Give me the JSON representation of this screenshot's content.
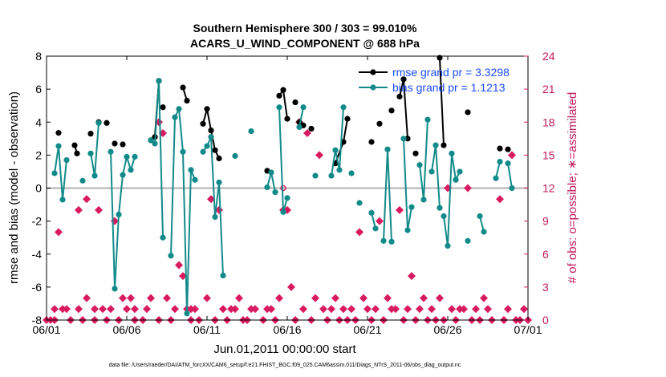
{
  "chart_data": {
    "type": "line",
    "title": "Southern Hemisphere 300 / 303 = 99.010%",
    "subtitle": "ACARS_U_WIND_COMPONENT @ 688 hPa",
    "xlabel": "Jun.01,2011 00:00:00 start",
    "ylabel": "rmse and bias (model - observation)",
    "y2label": "# of obs: o=possible; ∗=assimilated",
    "footnote": "data file: /Users/raeder/DAI/ATM_forcXX/CAM6_setup/f.e21.FHIST_BGC.f09_025.CAM6assim.011/Diags_NTrS_2011-06/obs_diag_output.nc",
    "xlim": [
      0,
      30
    ],
    "ylim": [
      -8,
      8
    ],
    "y2lim": [
      0,
      24
    ],
    "x_ticks": [
      {
        "value": 0,
        "label": "06/01"
      },
      {
        "value": 5,
        "label": "06/06"
      },
      {
        "value": 10,
        "label": "06/11"
      },
      {
        "value": 15,
        "label": "06/16"
      },
      {
        "value": 20,
        "label": "06/21"
      },
      {
        "value": 25,
        "label": "06/26"
      },
      {
        "value": 30,
        "label": "07/01"
      }
    ],
    "y_ticks": [
      -8,
      -6,
      -4,
      -2,
      0,
      2,
      4,
      6,
      8
    ],
    "y2_ticks": [
      0,
      3,
      6,
      9,
      12,
      15,
      18,
      21,
      24
    ],
    "legend_position": "top-right",
    "colors": {
      "rmse": "#000000",
      "bias": "#138a8a",
      "nobs": "#d81b60",
      "zero": "#b0b0b0"
    },
    "series": [
      {
        "name": "rmse grand pr = 3.3298",
        "segments": [
          [
            [
              0.75,
              3.35
            ]
          ],
          [
            [
              1.75,
              2.6
            ],
            [
              1.9,
              2.1
            ]
          ],
          [
            [
              2.75,
              3.3
            ]
          ],
          [
            [
              3.25,
              4.0
            ]
          ],
          [
            [
              3.75,
              3.95
            ]
          ],
          [
            [
              4.25,
              2.7
            ]
          ],
          [
            [
              4.75,
              2.65
            ]
          ],
          [
            [
              6.5,
              2.9
            ],
            [
              6.75,
              3.1
            ],
            [
              7.0,
              6.5
            ]
          ],
          [
            [
              7.25,
              4.9
            ]
          ],
          [
            [
              8.5,
              6.1
            ],
            [
              8.75,
              5.3
            ]
          ],
          [
            [
              9.75,
              3.9
            ],
            [
              10.0,
              4.8
            ],
            [
              10.25,
              3.5
            ],
            [
              10.5,
              2.3
            ],
            [
              10.75,
              1.8
            ]
          ],
          [
            [
              13.75,
              1.05
            ]
          ],
          [
            [
              14.5,
              5.6
            ],
            [
              14.75,
              5.95
            ],
            [
              15.0,
              4.2
            ]
          ],
          [
            [
              15.5,
              5.2
            ]
          ],
          [
            [
              15.75,
              4.0
            ],
            [
              16.0,
              3.8
            ]
          ],
          [
            [
              16.5,
              3.6
            ]
          ],
          [
            [
              18.0,
              1.5
            ],
            [
              18.5,
              2.8
            ],
            [
              18.75,
              4.2
            ]
          ],
          [
            [
              20.25,
              2.8
            ]
          ],
          [
            [
              20.75,
              3.9
            ]
          ],
          [
            [
              21.5,
              4.7
            ]
          ],
          [
            [
              22.0,
              5.55
            ],
            [
              22.25,
              6.6
            ],
            [
              22.5,
              3.0
            ]
          ],
          [
            [
              23.0,
              2.1
            ]
          ],
          [
            [
              24.5,
              7.9
            ],
            [
              24.75,
              2.6
            ]
          ],
          [
            [
              26.25,
              4.6
            ]
          ],
          [
            [
              28.25,
              2.4
            ]
          ],
          [
            [
              28.75,
              2.35
            ]
          ]
        ]
      },
      {
        "name": "bias grand pr = 1.1213",
        "segments": [
          [
            [
              0.5,
              0.9
            ],
            [
              0.75,
              2.55
            ],
            [
              1.0,
              -0.7
            ],
            [
              1.25,
              1.7
            ]
          ],
          [
            [
              2.25,
              0.45
            ]
          ],
          [
            [
              2.75,
              2.1
            ],
            [
              3.0,
              0.75
            ],
            [
              3.25,
              3.95
            ]
          ],
          [
            [
              4.0,
              2.2
            ],
            [
              4.25,
              -6.1
            ],
            [
              4.5,
              -1.6
            ],
            [
              4.75,
              0.8
            ],
            [
              5.0,
              1.9
            ],
            [
              5.25,
              1.1
            ],
            [
              5.5,
              1.9
            ]
          ],
          [
            [
              6.5,
              2.9
            ],
            [
              6.75,
              2.7
            ],
            [
              7.0,
              6.5
            ],
            [
              7.25,
              -3.0
            ]
          ],
          [
            [
              7.75,
              -4.1
            ],
            [
              8.0,
              4.3
            ],
            [
              8.25,
              4.8
            ],
            [
              8.5,
              2.2
            ],
            [
              8.75,
              -7.6
            ],
            [
              9.0,
              1.1
            ],
            [
              9.25,
              0.5
            ]
          ],
          [
            [
              9.75,
              2.2
            ],
            [
              10.0,
              2.55
            ],
            [
              10.25,
              3.1
            ],
            [
              10.5,
              -1.75
            ],
            [
              10.75,
              0.35
            ],
            [
              11.0,
              -5.3
            ]
          ],
          [
            [
              11.75,
              1.95
            ]
          ],
          [
            [
              12.75,
              3.45
            ]
          ],
          [
            [
              13.75,
              0.05
            ],
            [
              14.0,
              0.95
            ],
            [
              14.25,
              -0.25
            ]
          ],
          [
            [
              14.5,
              4.9
            ],
            [
              14.75,
              -1.45
            ],
            [
              15.0,
              -0.6
            ]
          ],
          [
            [
              15.75,
              3.7
            ],
            [
              16.0,
              4.9
            ]
          ],
          [
            [
              16.75,
              0.75
            ]
          ],
          [
            [
              17.75,
              0.75
            ],
            [
              18.0,
              2.3
            ],
            [
              18.25,
              1.1
            ],
            [
              18.5,
              4.9
            ]
          ],
          [
            [
              19.0,
              0.9
            ]
          ],
          [
            [
              19.5,
              -0.9
            ]
          ],
          [
            [
              20.25,
              -1.5
            ],
            [
              20.5,
              -2.45
            ]
          ],
          [
            [
              21.0,
              -3.2
            ],
            [
              21.25,
              2.35
            ],
            [
              21.5,
              -3.25
            ]
          ],
          [
            [
              22.25,
              3.0
            ],
            [
              22.5,
              -2.55
            ],
            [
              22.75,
              -1.15
            ]
          ],
          [
            [
              23.25,
              1.4
            ],
            [
              23.5,
              -0.7
            ],
            [
              23.75,
              4.15
            ]
          ],
          [
            [
              24.0,
              1.0
            ],
            [
              24.25,
              2.6
            ],
            [
              24.5,
              -1.2
            ]
          ],
          [
            [
              24.75,
              -1.7
            ],
            [
              25.0,
              -3.5
            ],
            [
              25.25,
              2.1
            ],
            [
              25.5,
              0.5
            ],
            [
              25.75,
              1.0
            ]
          ],
          [
            [
              26.25,
              -3.2
            ]
          ],
          [
            [
              27.0,
              -1.7
            ],
            [
              27.25,
              -2.65
            ]
          ],
          [
            [
              28.0,
              0.6
            ],
            [
              28.25,
              1.6
            ]
          ],
          [
            [
              28.75,
              1.5
            ],
            [
              29.0,
              0.0
            ]
          ]
        ]
      },
      {
        "name": "# of obs possible",
        "axis": "right",
        "points": [
          [
            14.75,
            12
          ]
        ]
      },
      {
        "name": "# of obs assimilated",
        "axis": "right",
        "points": [
          [
            0.0,
            0
          ],
          [
            0.25,
            0
          ],
          [
            0.5,
            0
          ],
          [
            0.5,
            1
          ],
          [
            0.75,
            8
          ],
          [
            1.0,
            1
          ],
          [
            1.25,
            1
          ],
          [
            1.5,
            0
          ],
          [
            2.0,
            1
          ],
          [
            2.0,
            10
          ],
          [
            2.25,
            0
          ],
          [
            2.5,
            2
          ],
          [
            2.5,
            11
          ],
          [
            3.0,
            0
          ],
          [
            3.0,
            1
          ],
          [
            3.25,
            10
          ],
          [
            3.5,
            1
          ],
          [
            3.75,
            0
          ],
          [
            4.0,
            1
          ],
          [
            4.25,
            9
          ],
          [
            4.5,
            0
          ],
          [
            4.75,
            2
          ],
          [
            5.0,
            1
          ],
          [
            5.25,
            2
          ],
          [
            5.5,
            0
          ],
          [
            5.5,
            1
          ],
          [
            6.0,
            0
          ],
          [
            6.25,
            1
          ],
          [
            6.5,
            2
          ],
          [
            7.0,
            0
          ],
          [
            7.0,
            18
          ],
          [
            7.25,
            17
          ],
          [
            7.5,
            2
          ],
          [
            7.75,
            0
          ],
          [
            8.0,
            1
          ],
          [
            8.25,
            5
          ],
          [
            8.5,
            4
          ],
          [
            8.75,
            1
          ],
          [
            9.0,
            0
          ],
          [
            9.0,
            1
          ],
          [
            9.25,
            1
          ],
          [
            9.5,
            0
          ],
          [
            10.0,
            2
          ],
          [
            10.25,
            11
          ],
          [
            10.5,
            0
          ],
          [
            10.75,
            10
          ],
          [
            11.0,
            1
          ],
          [
            11.25,
            0
          ],
          [
            11.5,
            1
          ],
          [
            11.75,
            1
          ],
          [
            12.0,
            2
          ],
          [
            12.25,
            0
          ],
          [
            12.5,
            0
          ],
          [
            12.75,
            1
          ],
          [
            13.0,
            1
          ],
          [
            13.5,
            0
          ],
          [
            13.75,
            1
          ],
          [
            14.0,
            1
          ],
          [
            14.25,
            0
          ],
          [
            14.5,
            2
          ],
          [
            14.75,
            10
          ],
          [
            15.0,
            10
          ],
          [
            15.25,
            3
          ],
          [
            15.5,
            0
          ],
          [
            15.75,
            18
          ],
          [
            16.0,
            1
          ],
          [
            16.25,
            17
          ],
          [
            16.5,
            0
          ],
          [
            16.75,
            2
          ],
          [
            17.0,
            15
          ],
          [
            17.25,
            1
          ],
          [
            17.5,
            0
          ],
          [
            17.75,
            1
          ],
          [
            18.0,
            2
          ],
          [
            18.25,
            0
          ],
          [
            18.5,
            1
          ],
          [
            18.75,
            0
          ],
          [
            19.0,
            1
          ],
          [
            19.25,
            0
          ],
          [
            19.5,
            8
          ],
          [
            19.75,
            2
          ],
          [
            20.0,
            1
          ],
          [
            20.25,
            0
          ],
          [
            20.5,
            1
          ],
          [
            20.75,
            9
          ],
          [
            21.0,
            0
          ],
          [
            21.25,
            2
          ],
          [
            21.5,
            1
          ],
          [
            21.75,
            1
          ],
          [
            22.0,
            10
          ],
          [
            22.25,
            0
          ],
          [
            22.5,
            1
          ],
          [
            22.75,
            4
          ],
          [
            23.0,
            0
          ],
          [
            23.25,
            1
          ],
          [
            23.5,
            2
          ],
          [
            23.75,
            0
          ],
          [
            24.0,
            1
          ],
          [
            24.25,
            0
          ],
          [
            24.5,
            2
          ],
          [
            24.75,
            0
          ],
          [
            25.0,
            12
          ],
          [
            25.25,
            1
          ],
          [
            25.5,
            0
          ],
          [
            25.75,
            1
          ],
          [
            26.0,
            1
          ],
          [
            26.25,
            12
          ],
          [
            26.5,
            0
          ],
          [
            26.75,
            1
          ],
          [
            27.0,
            0
          ],
          [
            27.25,
            2
          ],
          [
            27.5,
            1
          ],
          [
            27.75,
            0
          ],
          [
            28.25,
            11
          ],
          [
            28.5,
            0
          ],
          [
            28.75,
            1
          ],
          [
            29.0,
            15
          ],
          [
            29.25,
            0
          ],
          [
            29.5,
            0
          ],
          [
            29.75,
            1
          ],
          [
            30.0,
            0
          ]
        ]
      }
    ]
  }
}
